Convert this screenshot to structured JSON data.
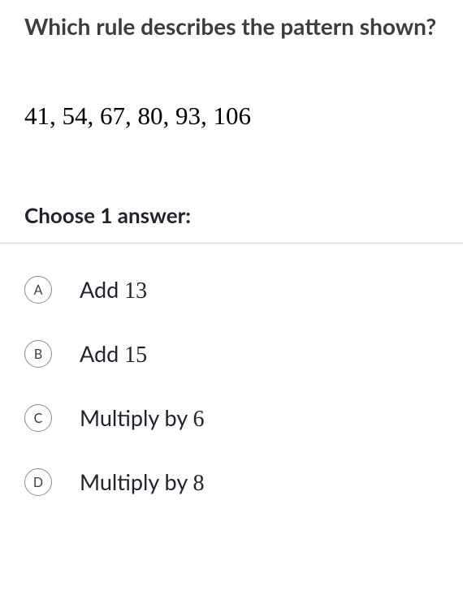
{
  "question": {
    "title": "Which rule describes the pattern shown?",
    "sequence": "41, 54, 67, 80, 93, 106"
  },
  "choose_label": "Choose 1 answer:",
  "answers": [
    {
      "letter": "A",
      "text_prefix": "Add ",
      "number": "13"
    },
    {
      "letter": "B",
      "text_prefix": "Add ",
      "number": "15"
    },
    {
      "letter": "C",
      "text_prefix": "Multiply by ",
      "number": "6"
    },
    {
      "letter": "D",
      "text_prefix": "Multiply by ",
      "number": "8"
    }
  ],
  "colors": {
    "background": "#ffffff",
    "title_text": "#3b3e40",
    "body_text": "#21242c",
    "circle_border": "#888d93",
    "divider": "#d6d8da"
  },
  "typography": {
    "title_fontsize": 28,
    "title_fontweight": 700,
    "sequence_fontsize": 31,
    "sequence_fontfamily": "serif",
    "choose_fontsize": 26,
    "choose_fontweight": 700,
    "answer_fontsize": 27,
    "letter_fontsize": 16,
    "letter_circle_diameter": 34
  }
}
